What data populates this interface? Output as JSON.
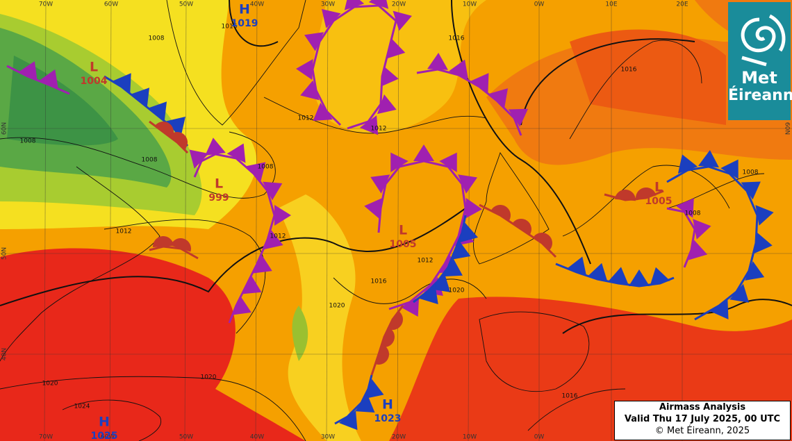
{
  "map": {
    "pressure_centers": [
      {
        "kind": "L",
        "value": "1004"
      },
      {
        "kind": "H",
        "value": "1019"
      },
      {
        "kind": "L",
        "value": "999"
      },
      {
        "kind": "L",
        "value": "1005"
      },
      {
        "kind": "L",
        "value": "1005"
      },
      {
        "kind": "H",
        "value": "1023"
      },
      {
        "kind": "H",
        "value": "1025"
      }
    ],
    "longitude_labels_top": [
      "70W",
      "60W",
      "50W",
      "40W",
      "30W",
      "20W",
      "10W",
      "0W",
      "10E",
      "20E"
    ],
    "longitude_labels_bottom": [
      "70W",
      "60W",
      "50W",
      "40W",
      "30W",
      "20W",
      "10W",
      "0W"
    ],
    "latitude_labels_left": [
      "60N",
      "50N",
      "40N"
    ],
    "latitude_labels_right": [
      "60N"
    ],
    "isobar_labels": [
      "1016",
      "1008",
      "1012",
      "1012",
      "1008",
      "1008",
      "1008",
      "1012",
      "1012",
      "1016",
      "1020",
      "1020",
      "1016",
      "1016",
      "1020",
      "1020",
      "1024",
      "1016",
      "1008",
      "1008",
      "1012"
    ]
  },
  "caption": {
    "title": "Airmass Analysis",
    "valid": "Valid Thu 17 July 2025, 00 UTC",
    "copyright": "© Met Éireann, 2025"
  },
  "logo": {
    "line1": "Met",
    "line2": "Éireann"
  }
}
